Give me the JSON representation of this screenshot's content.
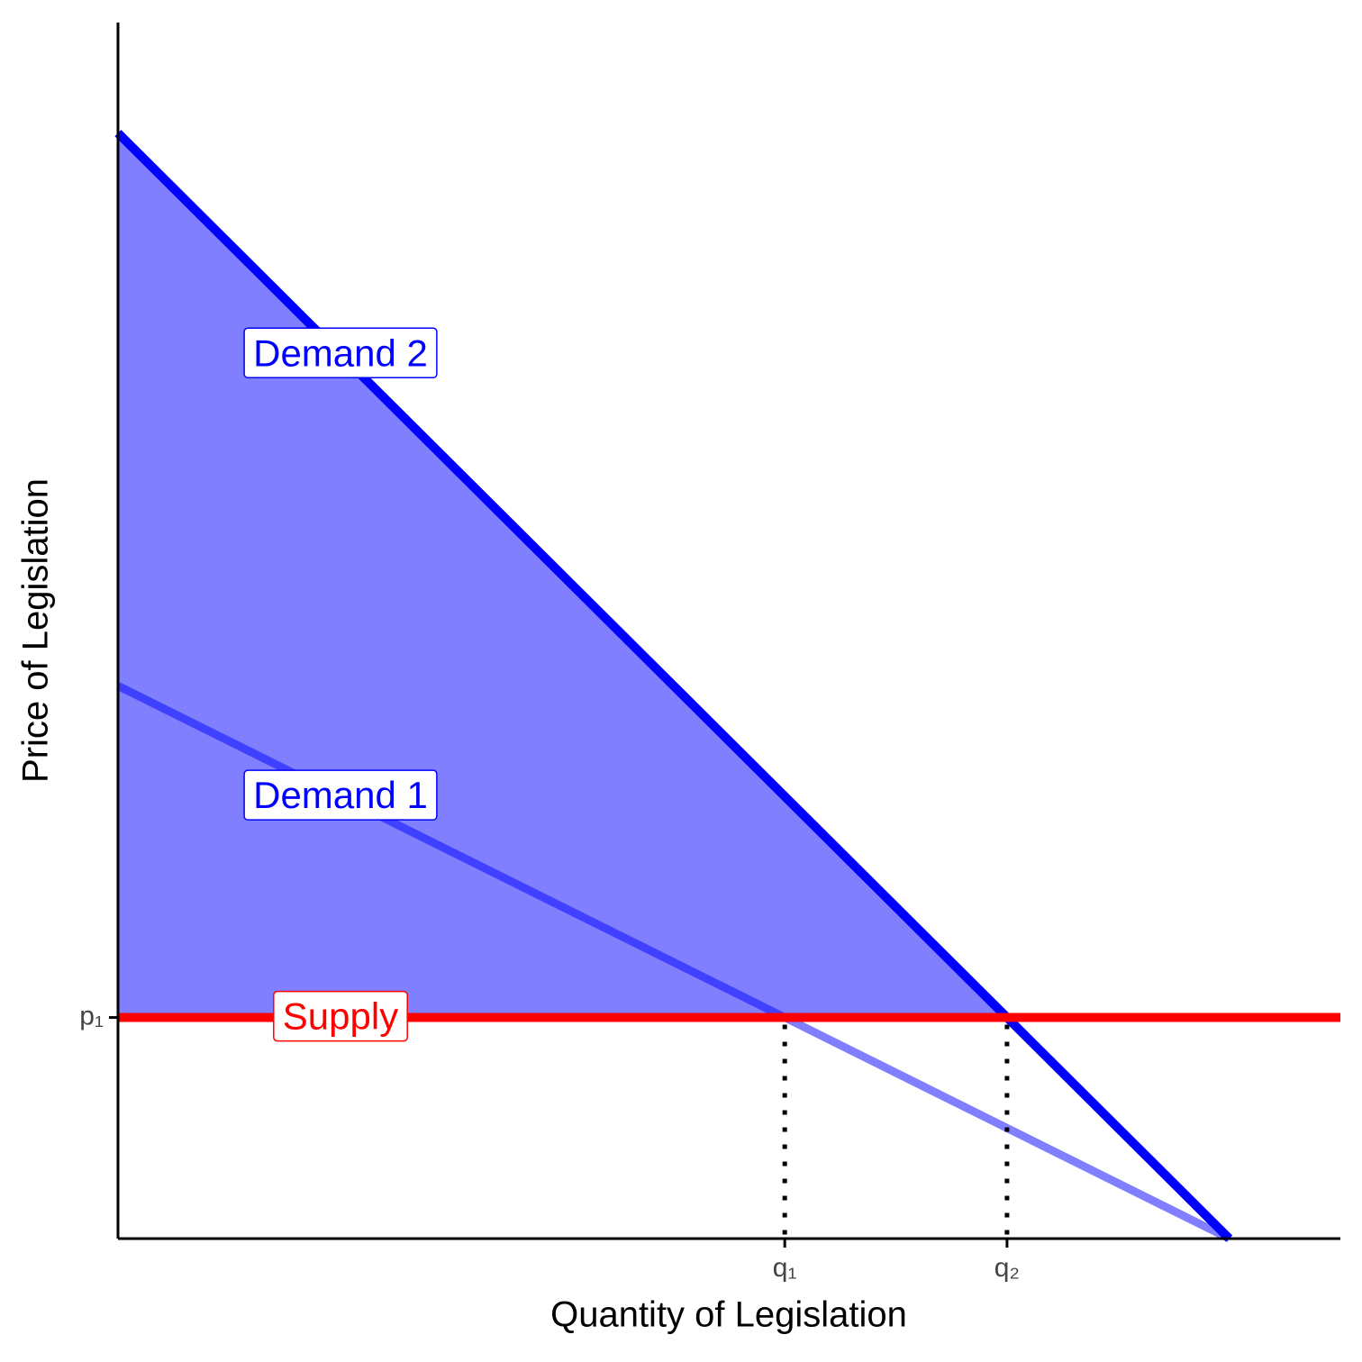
{
  "chart_data": {
    "type": "line",
    "xlabel": "Quantity of Legislation",
    "ylabel": "Price of Legislation",
    "xlim": [
      0,
      11
    ],
    "ylim": [
      0,
      11
    ],
    "xticks": [
      {
        "value": 6,
        "label": "q₁"
      },
      {
        "value": 8,
        "label": "q₂"
      }
    ],
    "yticks": [
      {
        "value": 2,
        "label": "p₁"
      }
    ],
    "fill_color": "#8080ff",
    "series": [
      {
        "name": "Demand 1",
        "color": "#4040ff",
        "x": [
          0,
          10
        ],
        "values": [
          5,
          0
        ]
      },
      {
        "name": "Demand 2",
        "color": "#0000ff",
        "x": [
          0,
          10
        ],
        "values": [
          10,
          0
        ]
      },
      {
        "name": "Supply",
        "color": "#ff0000",
        "x": [
          0,
          11
        ],
        "values": [
          2,
          2
        ]
      }
    ]
  }
}
